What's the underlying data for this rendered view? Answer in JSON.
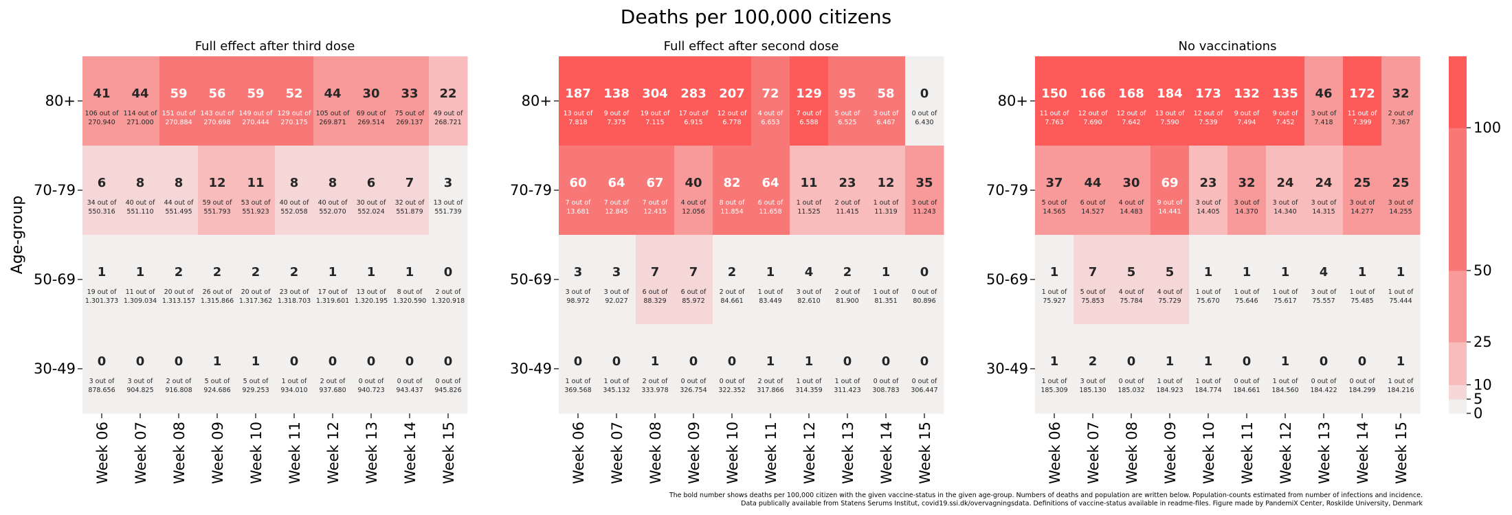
{
  "figure": {
    "title": "Deaths per 100,000 citizens",
    "ylabel": "Age-group",
    "footnote_line1": "The bold number shows deaths per 100,000 citizen with the given vaccine-status in the given age-group. Numbers of deaths and population are written below. Population-counts estimated from number of infections and incidence.",
    "footnote_line2": "Data publically available from Statens Serums Institut, covid19.ssi.dk/overvagningsdata. Definitions of vaccine-status available in readme-files. Figure made by PandemiX Center, Roskilde University, Denmark",
    "colorbar_ticks": [
      0,
      5,
      10,
      25,
      50,
      100
    ],
    "colorbar_max": 125,
    "colors": {
      "bin_0_5": "#f2f0ef",
      "bin_5_10": "#f6d7d7",
      "bin_10_25": "#f8bcbc",
      "bin_25_50": "#f89a9a",
      "bin_50_100": "#f87878",
      "bin_100_plus": "#fd5a5a",
      "text_dark": "#262626",
      "text_light": "#ffffff"
    }
  },
  "chart_data": [
    {
      "type": "heatmap",
      "title": "Full effect after third dose",
      "x": [
        "Week 06",
        "Week 07",
        "Week 08",
        "Week 09",
        "Week 10",
        "Week 11",
        "Week 12",
        "Week 13",
        "Week 14",
        "Week 15"
      ],
      "y": [
        "80+",
        "70-79",
        "50-69",
        "30-49"
      ],
      "values": [
        [
          41,
          44,
          59,
          56,
          59,
          52,
          44,
          30,
          33,
          22
        ],
        [
          6,
          8,
          8,
          12,
          11,
          8,
          8,
          6,
          7,
          3
        ],
        [
          1,
          1,
          2,
          2,
          2,
          2,
          1,
          1,
          1,
          0
        ],
        [
          0,
          0,
          0,
          1,
          1,
          0,
          0,
          0,
          0,
          0
        ]
      ],
      "details": [
        [
          "106 out of|270.940",
          "114 out of|271.000",
          "151 out of|270.884",
          "143 out of|270.698",
          "149 out of|270.444",
          "129 out of|270.175",
          "105 out of|269.871",
          "69 out of|269.514",
          "75 out of|269.137",
          "49 out of|268.721"
        ],
        [
          "34 out of|550.316",
          "40 out of|551.110",
          "44 out of|551.495",
          "59 out of|551.793",
          "53 out of|551.923",
          "40 out of|552.058",
          "40 out of|552.070",
          "30 out of|552.024",
          "32 out of|551.879",
          "13 out of|551.739"
        ],
        [
          "19 out of|1.301.373",
          "11 out of|1.309.034",
          "20 out of|1.313.157",
          "26 out of|1.315.866",
          "20 out of|1.317.362",
          "23 out of|1.318.703",
          "17 out of|1.319.601",
          "13 out of|1.320.195",
          "8 out of|1.320.590",
          "2 out of|1.320.918"
        ],
        [
          "3 out of|878.656",
          "3 out of|904.825",
          "2 out of|916.808",
          "5 out of|924.686",
          "5 out of|929.253",
          "1 out of|934.010",
          "2 out of|937.680",
          "0 out of|940.723",
          "0 out of|943.437",
          "0 out of|945.826"
        ]
      ]
    },
    {
      "type": "heatmap",
      "title": "Full effect after second dose",
      "x": [
        "Week 06",
        "Week 07",
        "Week 08",
        "Week 09",
        "Week 10",
        "Week 11",
        "Week 12",
        "Week 13",
        "Week 14",
        "Week 15"
      ],
      "y": [
        "80+",
        "70-79",
        "50-69",
        "30-49"
      ],
      "values": [
        [
          187,
          138,
          304,
          283,
          207,
          72,
          129,
          95,
          58,
          0
        ],
        [
          60,
          64,
          67,
          40,
          82,
          64,
          11,
          23,
          12,
          35
        ],
        [
          3,
          3,
          7,
          7,
          2,
          1,
          4,
          2,
          1,
          0
        ],
        [
          0,
          0,
          1,
          0,
          0,
          1,
          1,
          0,
          0,
          0
        ]
      ],
      "details": [
        [
          "13 out of|7.818",
          "9 out of|7.375",
          "19 out of|7.115",
          "17 out of|6.915",
          "12 out of|6.778",
          "4 out of|6.653",
          "7 out of|6.588",
          "5 out of|6.525",
          "3 out of|6.467",
          "0 out of|6.430"
        ],
        [
          "7 out of|13.681",
          "7 out of|12.845",
          "7 out of|12.415",
          "4 out of|12.056",
          "8 out of|11.854",
          "6 out of|11.658",
          "1 out of|11.525",
          "2 out of|11.415",
          "1 out of|11.319",
          "3 out of|11.243"
        ],
        [
          "3 out of|98.972",
          "3 out of|92.027",
          "6 out of|88.329",
          "6 out of|85.972",
          "2 out of|84.661",
          "1 out of|83.449",
          "3 out of|82.610",
          "2 out of|81.900",
          "1 out of|81.351",
          "0 out of|80.896"
        ],
        [
          "1 out of|369.568",
          "1 out of|345.132",
          "2 out of|333.978",
          "0 out of|326.754",
          "0 out of|322.352",
          "2 out of|317.866",
          "1 out of|314.359",
          "1 out of|311.423",
          "0 out of|308.783",
          "0 out of|306.447"
        ]
      ]
    },
    {
      "type": "heatmap",
      "title": "No vaccinations",
      "x": [
        "Week 06",
        "Week 07",
        "Week 08",
        "Week 09",
        "Week 10",
        "Week 11",
        "Week 12",
        "Week 13",
        "Week 14",
        "Week 15"
      ],
      "y": [
        "80+",
        "70-79",
        "50-69",
        "30-49"
      ],
      "values": [
        [
          150,
          166,
          168,
          184,
          173,
          132,
          135,
          46,
          172,
          32
        ],
        [
          37,
          44,
          30,
          69,
          23,
          32,
          24,
          24,
          25,
          25
        ],
        [
          1,
          7,
          5,
          5,
          1,
          1,
          1,
          4,
          1,
          1
        ],
        [
          1,
          2,
          0,
          1,
          1,
          0,
          1,
          0,
          0,
          1
        ]
      ],
      "details": [
        [
          "11 out of|7.763",
          "12 out of|7.690",
          "12 out of|7.642",
          "13 out of|7.590",
          "12 out of|7.539",
          "9 out of|7.494",
          "9 out of|7.452",
          "3 out of|7.418",
          "11 out of|7.399",
          "2 out of|7.367"
        ],
        [
          "5 out of|14.565",
          "6 out of|14.527",
          "4 out of|14.483",
          "9 out of|14.441",
          "3 out of|14.405",
          "3 out of|14.370",
          "3 out of|14.340",
          "3 out of|14.315",
          "3 out of|14.277",
          "3 out of|14.255"
        ],
        [
          "1 out of|75.927",
          "5 out of|75.853",
          "4 out of|75.784",
          "4 out of|75.729",
          "1 out of|75.670",
          "1 out of|75.646",
          "1 out of|75.617",
          "3 out of|75.557",
          "1 out of|75.485",
          "1 out of|75.444"
        ],
        [
          "1 out of|185.309",
          "3 out of|185.130",
          "0 out of|185.032",
          "1 out of|184.923",
          "1 out of|184.774",
          "0 out of|184.661",
          "1 out of|184.560",
          "0 out of|184.422",
          "0 out of|184.299",
          "1 out of|184.216"
        ]
      ]
    }
  ]
}
